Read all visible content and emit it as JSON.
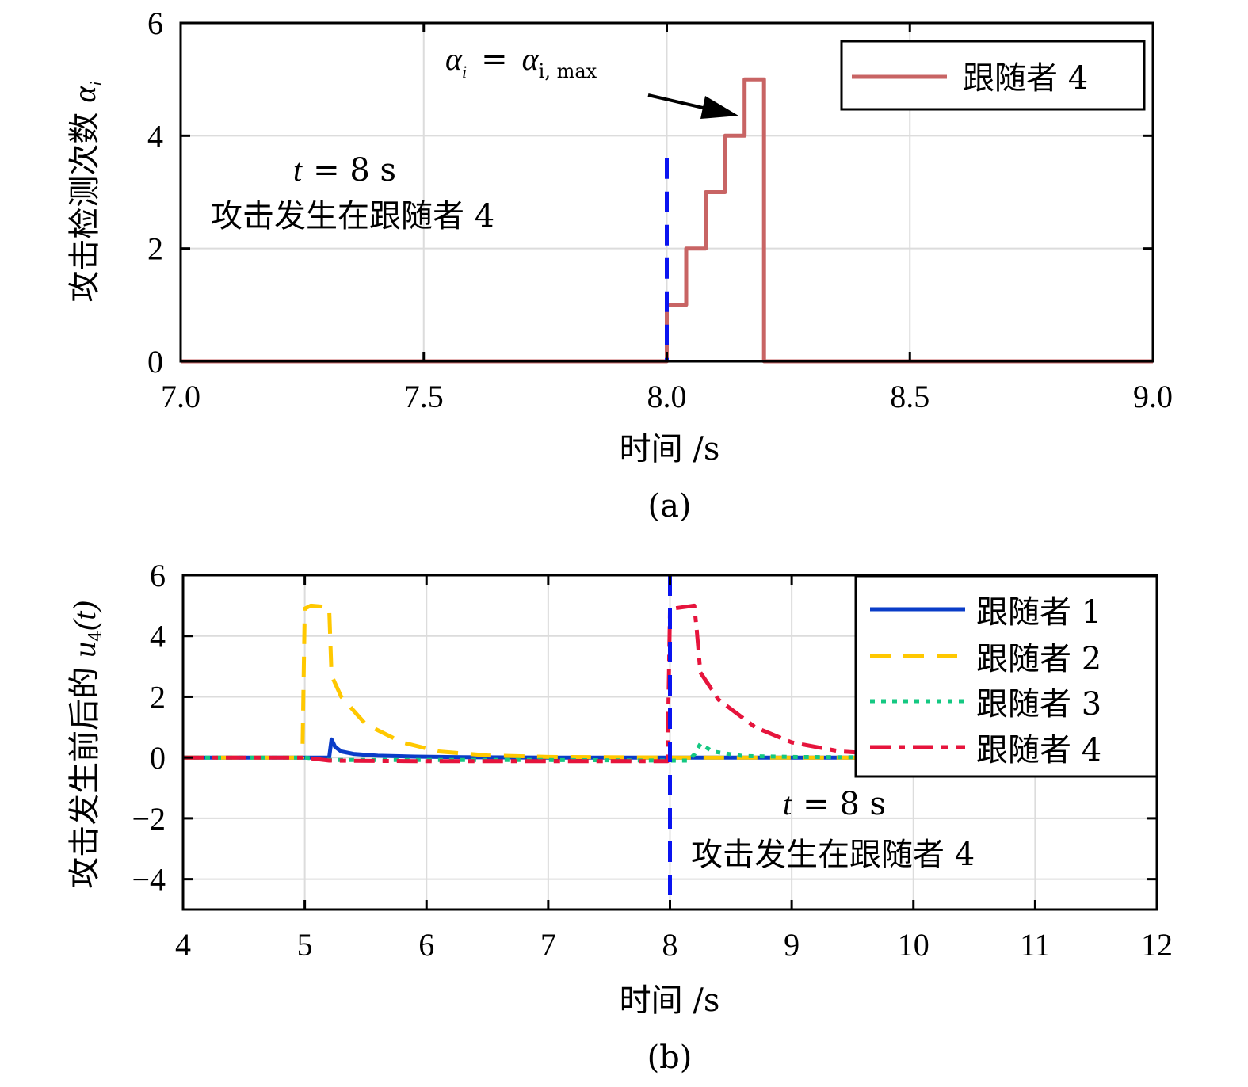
{
  "chart_data": [
    {
      "type": "line",
      "panel_label": "(a)",
      "xlabel": "时间 /s",
      "ylabel": "攻击检测次数 αi",
      "ylabel_text": "攻击检测次数",
      "ylabel_symbol": "α",
      "ylabel_sub": "i",
      "xlim": [
        7.0,
        9.0
      ],
      "ylim": [
        0,
        6
      ],
      "xticks": [
        7.0,
        7.5,
        8.0,
        8.5,
        9.0
      ],
      "xtick_labels": [
        "7.0",
        "7.5",
        "8.0",
        "8.5",
        "9.0"
      ],
      "yticks": [
        0,
        2,
        4,
        6
      ],
      "ytick_labels": [
        "0",
        "2",
        "4",
        "6"
      ],
      "grid": true,
      "legend_position": "top-right",
      "series": [
        {
          "name": "跟随者 4",
          "color": "#C86464",
          "style": "solid",
          "x": [
            7.0,
            8.0,
            8.0,
            8.04,
            8.04,
            8.08,
            8.08,
            8.12,
            8.12,
            8.16,
            8.16,
            8.2,
            8.2,
            9.0
          ],
          "y": [
            0,
            0,
            1,
            1,
            2,
            2,
            3,
            3,
            4,
            4,
            5,
            5,
            0,
            0
          ]
        }
      ],
      "vline": {
        "x": 8.0,
        "y_top": 3.6,
        "color": "#0A14F0",
        "style": "dashed"
      },
      "annotations": {
        "arrow_text_lhs": "α",
        "arrow_text_lhs_sub": "i",
        "arrow_text_eq": "=",
        "arrow_text_rhs": "α",
        "arrow_text_rhs_sub": "i, max",
        "time_text_var": "t",
        "time_text_rest": "= 8 s",
        "attack_text": "攻击发生在跟随者 4"
      }
    },
    {
      "type": "line",
      "panel_label": "(b)",
      "xlabel": "时间 /s",
      "ylabel_text": "攻击发生前后的",
      "ylabel_symbol": "u",
      "ylabel_sub": "4",
      "ylabel_tail": "(t)",
      "xlim": [
        4,
        12
      ],
      "ylim": [
        -5,
        6
      ],
      "xticks": [
        4,
        5,
        6,
        7,
        8,
        9,
        10,
        11,
        12
      ],
      "xtick_labels": [
        "4",
        "5",
        "6",
        "7",
        "8",
        "9",
        "10",
        "11",
        "12"
      ],
      "yticks": [
        -4,
        -2,
        0,
        2,
        4,
        6
      ],
      "ytick_labels": [
        "−4",
        "−2",
        "0",
        "2",
        "4",
        "6"
      ],
      "grid": true,
      "legend_position": "top-right",
      "series": [
        {
          "name": "跟随者 1",
          "color": "#0A3CC8",
          "style": "solid",
          "x": [
            4,
            5.2,
            5.22,
            5.25,
            5.3,
            5.4,
            5.6,
            5.9,
            6.3,
            7,
            8,
            9,
            10,
            12
          ],
          "y": [
            0,
            0,
            0.6,
            0.35,
            0.2,
            0.12,
            0.06,
            0.03,
            0.01,
            0,
            0,
            0,
            0,
            0
          ]
        },
        {
          "name": "跟随者 2",
          "color": "#FFC800",
          "style": "dashed",
          "x": [
            4,
            4.98,
            5.0,
            5.05,
            5.2,
            5.22,
            5.3,
            5.5,
            5.8,
            6.1,
            6.5,
            7,
            8,
            12
          ],
          "y": [
            0,
            0,
            4.9,
            5.0,
            4.95,
            2.7,
            2.0,
            1.1,
            0.5,
            0.2,
            0.07,
            0.02,
            0,
            0
          ]
        },
        {
          "name": "跟随者 3",
          "color": "#14C882",
          "style": "dotted",
          "x": [
            4,
            5,
            5.2,
            6,
            7,
            8.0,
            8.15,
            8.2,
            8.25,
            8.35,
            8.6,
            9,
            10,
            12
          ],
          "y": [
            0,
            0,
            -0.08,
            -0.08,
            -0.08,
            -0.1,
            -0.1,
            0.1,
            0.45,
            0.2,
            0.05,
            0.02,
            0,
            0
          ]
        },
        {
          "name": "跟随者 4",
          "color": "#E6143C",
          "style": "dashdot",
          "x": [
            4,
            5,
            5.2,
            6,
            7,
            7.98,
            8.0,
            8.02,
            8.2,
            8.22,
            8.25,
            8.4,
            8.7,
            9.0,
            9.4,
            9.8,
            10.2,
            12
          ],
          "y": [
            0,
            0,
            -0.1,
            -0.12,
            -0.12,
            -0.12,
            4.8,
            4.9,
            5.0,
            4.2,
            2.8,
            1.9,
            1.0,
            0.5,
            0.2,
            0.1,
            0.05,
            0
          ]
        }
      ],
      "vline": {
        "x": 8.0,
        "y_top": 6,
        "y_bottom": -4.8,
        "color": "#0A14F0",
        "style": "dashed"
      },
      "annotations": {
        "time_text_var": "t",
        "time_text_rest": "= 8 s",
        "attack_text": "攻击发生在跟随者 4"
      }
    }
  ]
}
